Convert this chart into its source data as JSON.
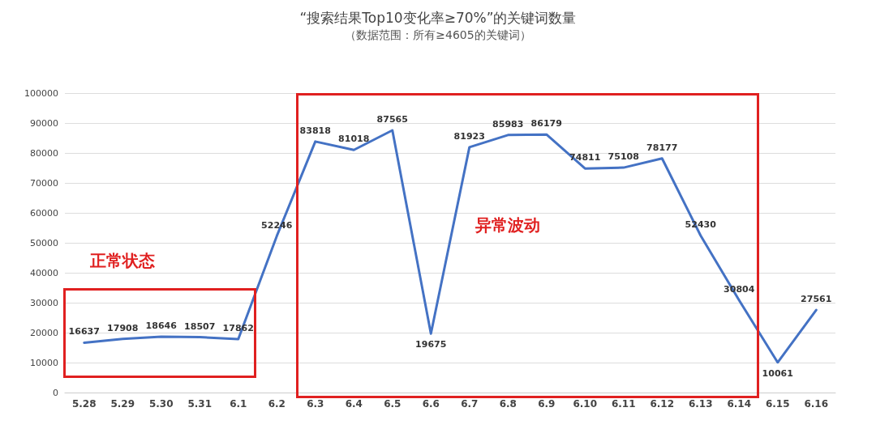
{
  "chart_data": {
    "type": "line",
    "title": "“搜索结果Top10变化率≥70%”的关键词数量",
    "subtitle": "（数据范围：所有≥4605的关键词）",
    "categories": [
      "5.28",
      "5.29",
      "5.30",
      "5.31",
      "6.1",
      "6.2",
      "6.3",
      "6.4",
      "6.5",
      "6.6",
      "6.7",
      "6.8",
      "6.9",
      "6.10",
      "6.11",
      "6.12",
      "6.13",
      "6.14",
      "6.15",
      "6.16"
    ],
    "values": [
      16637,
      17908,
      18646,
      18507,
      17862,
      52246,
      83818,
      81018,
      87565,
      19675,
      81923,
      85983,
      86179,
      74811,
      75108,
      78177,
      52430,
      30804,
      10061,
      27561
    ],
    "color": "#4472c4",
    "ylim": [
      0,
      100000
    ],
    "yticks": [
      0,
      10000,
      20000,
      30000,
      40000,
      50000,
      60000,
      70000,
      80000,
      90000,
      100000
    ],
    "grid": "y",
    "data_labels": true,
    "marker": "none",
    "line_style": "solid",
    "annotations": [
      "正常状态",
      "异常波动"
    ]
  }
}
